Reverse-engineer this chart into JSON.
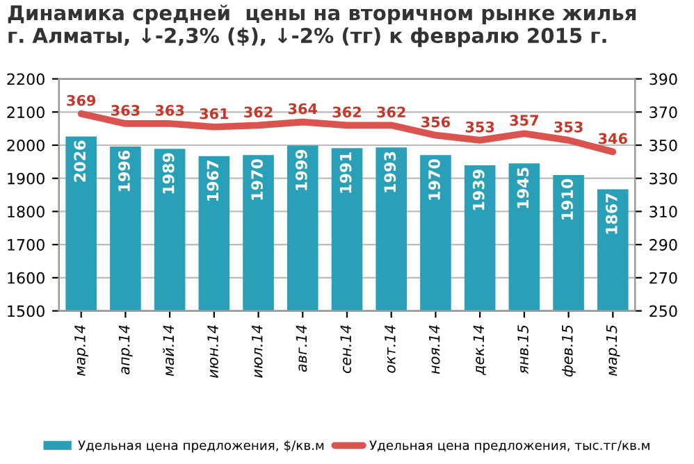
{
  "chart_data": {
    "type": "bar",
    "title": "Динамика средней  цены на вторичном рынке жилья\nг. Алматы, ↓-2,3% ($), ↓-2% (тг) к февралю 2015 г.",
    "categories": [
      "мар.14",
      "апр.14",
      "май.14",
      "июн.14",
      "июл.14",
      "авг.14",
      "сен.14",
      "окт.14",
      "ноя.14",
      "дек.14",
      "янв.15",
      "фев.15",
      "мар.15"
    ],
    "series": [
      {
        "name": "Удельная цена предложения, $/кв.м",
        "color": "#2a9fb8",
        "values": [
          2026,
          1996,
          1989,
          1967,
          1970,
          1999,
          1991,
          1993,
          1970,
          1939,
          1945,
          1910,
          1867
        ]
      },
      {
        "name": "Удельная цена предложения, тыс.тг/кв.м",
        "type": "line",
        "axis": "y2",
        "color": "#d9534f",
        "values": [
          369,
          363,
          363,
          361,
          362,
          364,
          362,
          362,
          356,
          353,
          357,
          353,
          346
        ]
      }
    ],
    "ylim": [
      1500,
      2200
    ],
    "yticks": [
      1500,
      1600,
      1700,
      1800,
      1900,
      2000,
      2100,
      2200
    ],
    "y2lim": [
      250,
      390
    ],
    "y2ticks": [
      250,
      270,
      290,
      310,
      330,
      350,
      370,
      390
    ],
    "grid": "y",
    "legend": "bottom",
    "data_labels": true,
    "marker": "none",
    "line_style": "solid"
  }
}
